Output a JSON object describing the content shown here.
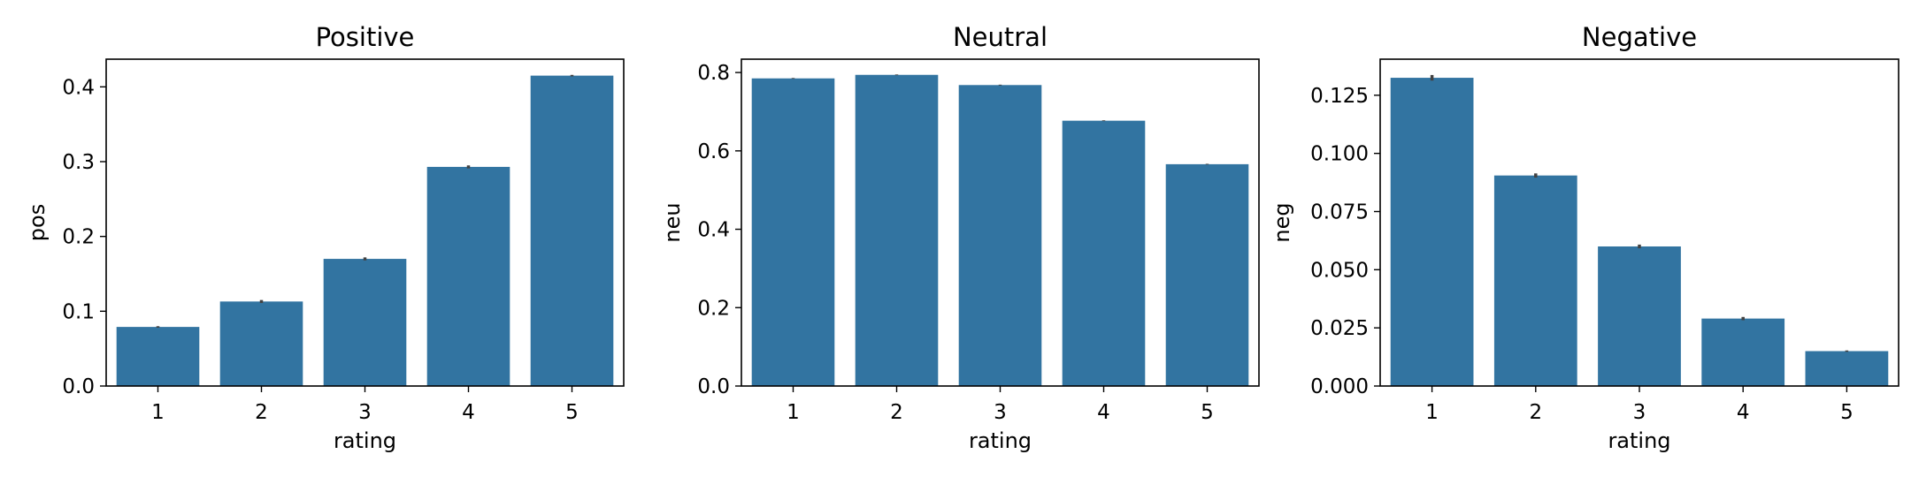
{
  "chart_data": [
    {
      "type": "bar",
      "title": "Positive",
      "xlabel": "rating",
      "ylabel": "pos",
      "categories": [
        "1",
        "2",
        "3",
        "4",
        "5"
      ],
      "values": [
        0.079,
        0.113,
        0.17,
        0.293,
        0.415
      ],
      "errors": [
        0.001,
        0.002,
        0.002,
        0.002,
        0.001
      ],
      "ylim": [
        0,
        0.437
      ],
      "yticks": [
        "0.0",
        "0.1",
        "0.2",
        "0.3",
        "0.4"
      ],
      "ytick_values": [
        0,
        0.1,
        0.2,
        0.3,
        0.4
      ],
      "color": "#3274a1",
      "grid": false
    },
    {
      "type": "bar",
      "title": "Neutral",
      "xlabel": "rating",
      "ylabel": "neu",
      "categories": [
        "1",
        "2",
        "3",
        "4",
        "5"
      ],
      "values": [
        0.785,
        0.794,
        0.768,
        0.677,
        0.566
      ],
      "errors": [
        0.001,
        0.001,
        0.001,
        0.001,
        0.001
      ],
      "ylim": [
        0,
        0.834
      ],
      "yticks": [
        "0.0",
        "0.2",
        "0.4",
        "0.6",
        "0.8"
      ],
      "ytick_values": [
        0,
        0.2,
        0.4,
        0.6,
        0.8
      ],
      "color": "#3274a1",
      "grid": false
    },
    {
      "type": "bar",
      "title": "Negative",
      "xlabel": "rating",
      "ylabel": "neg",
      "categories": [
        "1",
        "2",
        "3",
        "4",
        "5"
      ],
      "values": [
        0.1325,
        0.0905,
        0.06,
        0.029,
        0.015
      ],
      "errors": [
        0.0012,
        0.0009,
        0.0008,
        0.0007,
        0.0003
      ],
      "ylim": [
        0,
        0.1405
      ],
      "yticks": [
        "0.000",
        "0.025",
        "0.050",
        "0.075",
        "0.100",
        "0.125"
      ],
      "ytick_values": [
        0,
        0.025,
        0.05,
        0.075,
        0.1,
        0.125
      ],
      "color": "#3274a1",
      "grid": false
    }
  ]
}
